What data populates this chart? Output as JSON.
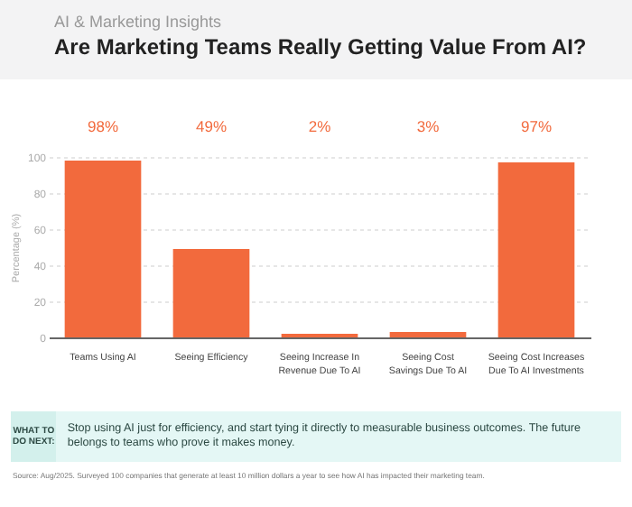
{
  "chart_data": {
    "type": "bar",
    "subtitle": "AI & Marketing Insights",
    "title": "Are Marketing Teams Really Getting Value From AI?",
    "categories": [
      "Teams Using AI",
      "Seeing Efficiency",
      "Seeing Increase In Revenue Due To AI",
      "Seeing Cost Savings Due To AI",
      "Seeing Cost Increases Due To AI Investments"
    ],
    "values": [
      98,
      49,
      2,
      3,
      97
    ],
    "color": "#f26a3d",
    "value_labels": [
      "98%",
      "49%",
      "2%",
      "3%",
      "97%"
    ],
    "ylabel": "Percentage (%)",
    "ylim": [
      0,
      100
    ],
    "yticks": [
      0,
      20,
      40,
      60,
      80,
      100
    ],
    "grid": "y",
    "annotations": [
      "WHAT TO DO NEXT:",
      "Stop using AI just for efficiency, and start tying it directly to measurable business outcomes. The future belongs to teams who prove it makes money.",
      "Source: Aug/2025. Surveyed 100 companies that generate at least 10 million dollars a year to see how AI has impacted their marketing team."
    ]
  }
}
